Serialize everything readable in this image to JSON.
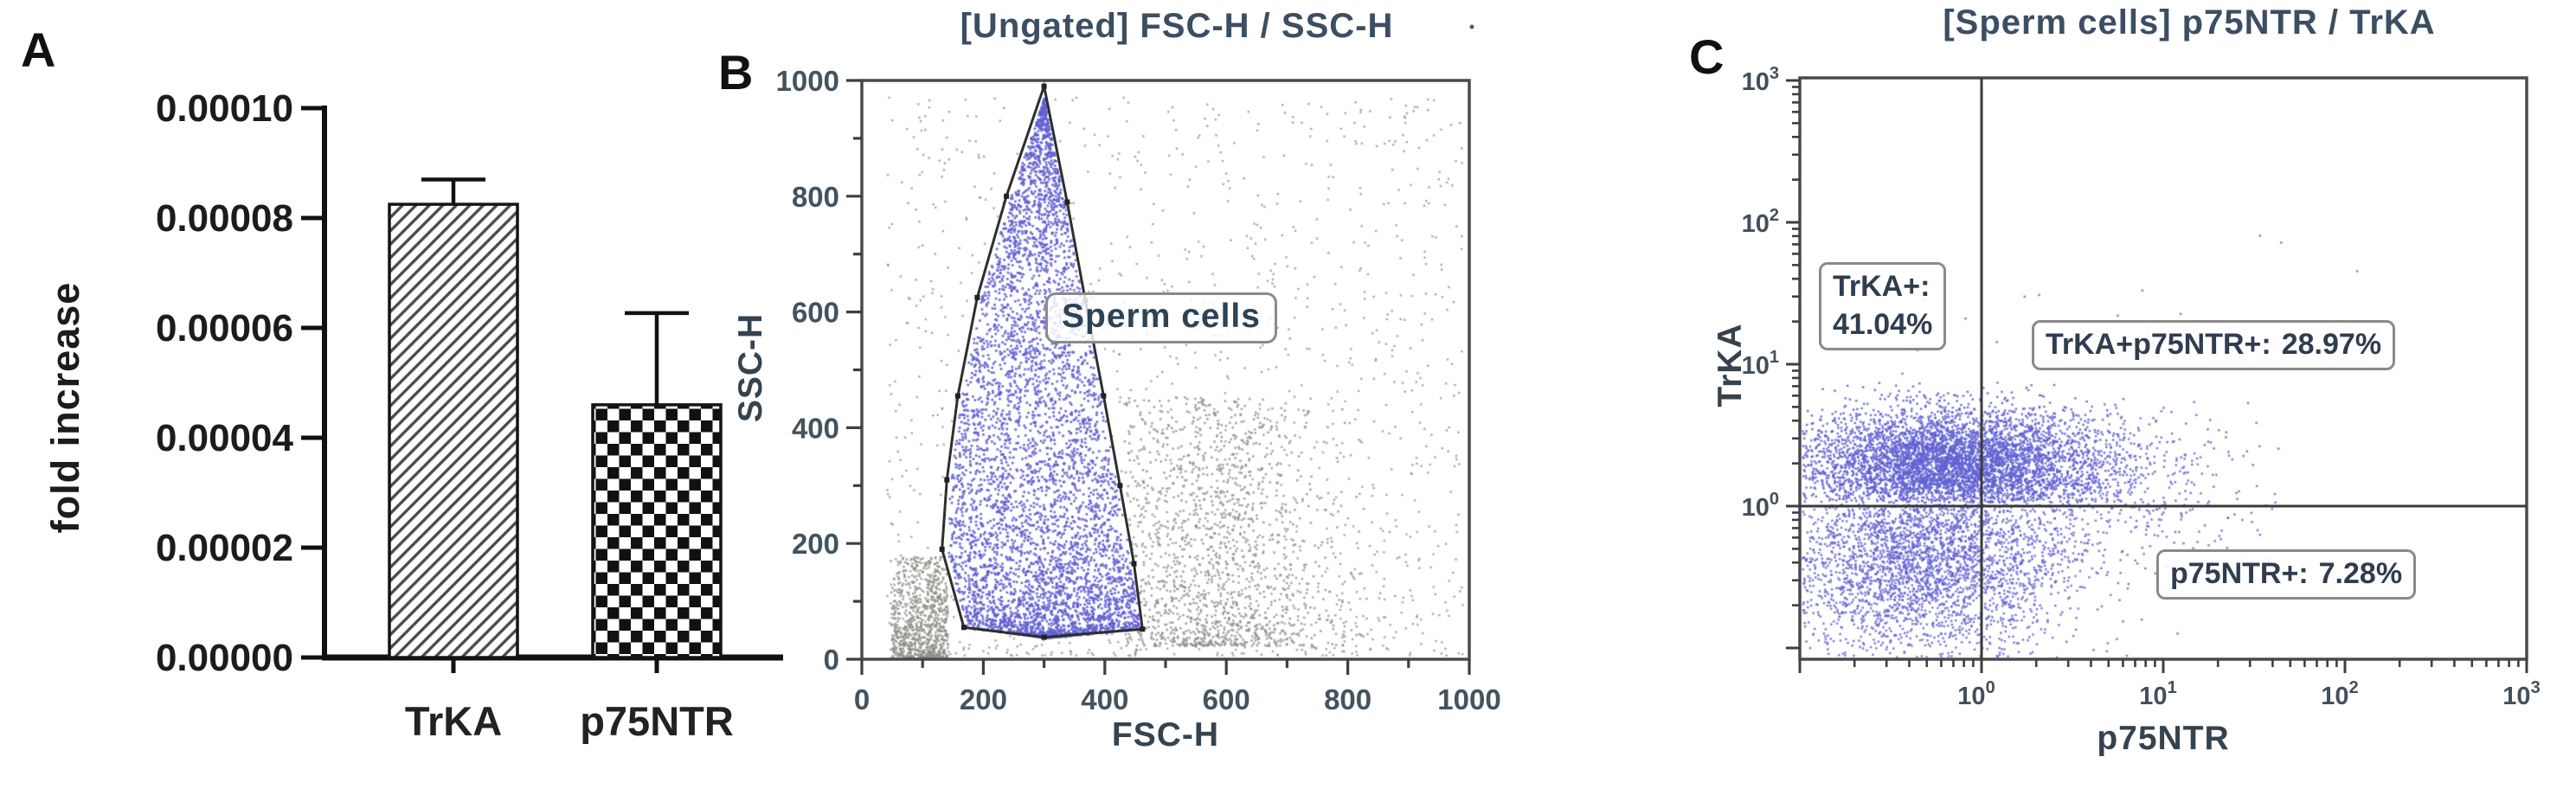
{
  "panel_a": {
    "panel_label": "A",
    "chart_data": {
      "type": "bar",
      "categories": [
        "TrKA",
        "p75NTR"
      ],
      "values": [
        8.25e-05,
        4.6e-05
      ],
      "errors_plus": [
        4.5e-06,
        1.67e-05
      ],
      "title": "",
      "xlabel": "",
      "ylabel": "fold increase",
      "ylim": [
        0,
        0.0001
      ],
      "ytick_labels": [
        "0.00000",
        "0.00002",
        "0.00004",
        "0.00006",
        "0.00008",
        "0.00010"
      ],
      "bar_patterns": [
        "diagonal-hatch",
        "checkerboard"
      ],
      "bar_fill": "#ffffff",
      "bar_stroke": "#141414",
      "grid": "off",
      "legend": "none"
    }
  },
  "panel_b": {
    "panel_label": "B",
    "title": "[Ungated] FSC-H / SSC-H",
    "gate_label": "Sperm cells",
    "chart_data": {
      "type": "scatter",
      "xlabel": "FSC-H",
      "ylabel": "SSC-H",
      "xlim": [
        0,
        1000
      ],
      "ylim": [
        0,
        1000
      ],
      "xtick_labels": [
        "0",
        "200",
        "400",
        "600",
        "800",
        "1000"
      ],
      "ytick_labels": [
        "0",
        "200",
        "400",
        "600",
        "800",
        "1000"
      ],
      "gate_polygon": [
        [
          300,
          990
        ],
        [
          338,
          790
        ],
        [
          368,
          620
        ],
        [
          398,
          455
        ],
        [
          425,
          300
        ],
        [
          448,
          165
        ],
        [
          462,
          52
        ],
        [
          300,
          38
        ],
        [
          168,
          55
        ],
        [
          132,
          190
        ],
        [
          140,
          310
        ],
        [
          158,
          455
        ],
        [
          190,
          625
        ],
        [
          238,
          800
        ]
      ],
      "populations": [
        {
          "name": "sperm cells (inside gate)",
          "color": "#6262d4",
          "count": 5200
        },
        {
          "name": "debris corner cluster",
          "color": "#8d8d87",
          "count": 850
        },
        {
          "name": "non-gated events mid cloud",
          "color": "#8d8d87",
          "count": 1500
        },
        {
          "name": "non-gated events broad scatter",
          "color": "#8d8d87",
          "count": 1500
        }
      ],
      "grid": "off",
      "legend": "none"
    }
  },
  "panel_c": {
    "panel_label": "C",
    "title": "[Sperm cells] p75NTR / TrKA",
    "chart_data": {
      "type": "scatter",
      "xscale": "log",
      "yscale": "log",
      "xlabel": "p75NTR",
      "ylabel": "TrKA",
      "xlim_log10": [
        -1,
        3
      ],
      "ylim_log10": [
        -1.08,
        3.02
      ],
      "xtick_exponents": [
        0,
        1,
        2,
        3
      ],
      "ytick_exponents": [
        3,
        2,
        1,
        0
      ],
      "quadrant_line_x": 1,
      "quadrant_line_y": 1,
      "point_color": "#6262d4",
      "quadrants": {
        "upper_left": {
          "label": "TrKA+:",
          "value": "41.04%"
        },
        "upper_right": {
          "label": "TrKA+p75NTR+:",
          "value": "28.97%"
        },
        "lower_right": {
          "label": "p75NTR+:",
          "value": "7.28%"
        }
      },
      "grid": "off",
      "legend": "none"
    }
  }
}
